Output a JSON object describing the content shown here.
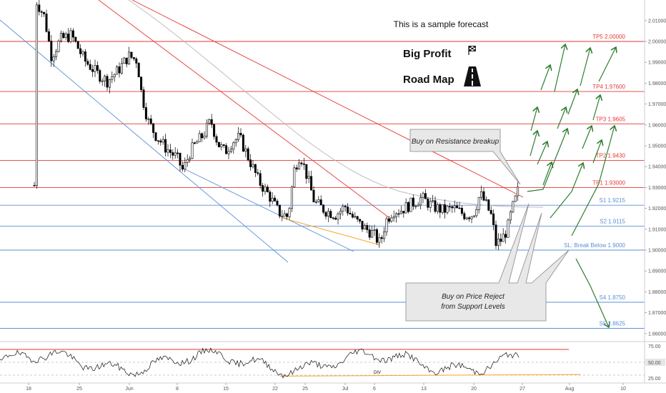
{
  "chart_data": {
    "type": "candlestick",
    "title": "This is a sample forecast",
    "heading_lines": [
      "Big Profit",
      "Road Map"
    ],
    "ylim": [
      1.855,
      2.02
    ],
    "y_ticks": [
      {
        "value": 2.01,
        "label": "2.01000"
      },
      {
        "value": 2.0,
        "label": "2.00000"
      },
      {
        "value": 1.99,
        "label": "1.99000"
      },
      {
        "value": 1.98,
        "label": "1.98000"
      },
      {
        "value": 1.97,
        "label": "1.97000"
      },
      {
        "value": 1.96,
        "label": "1.96000"
      },
      {
        "value": 1.95,
        "label": "1.95000"
      },
      {
        "value": 1.94,
        "label": "1.94000"
      },
      {
        "value": 1.93,
        "label": "1.93000"
      },
      {
        "value": 1.92,
        "label": "1.92000"
      },
      {
        "value": 1.91,
        "label": "1.91000"
      },
      {
        "value": 1.9,
        "label": "1.90000"
      },
      {
        "value": 1.89,
        "label": "1.89000"
      },
      {
        "value": 1.88,
        "label": "1.88000"
      },
      {
        "value": 1.87,
        "label": "1.87000"
      },
      {
        "value": 1.86,
        "label": "1.86000"
      }
    ],
    "x_ticks": [
      "18",
      "25",
      "Jun",
      "8",
      "15",
      "22",
      "25",
      "Jul",
      "6",
      "13",
      "20",
      "27",
      "Aug",
      "10"
    ],
    "levels": [
      {
        "label": "TP5 2.00000",
        "value": 2.0,
        "color": "#e53935"
      },
      {
        "label": "TP4 1.97600",
        "value": 1.976,
        "color": "#e53935"
      },
      {
        "label": "TP3 1.9605",
        "value": 1.9605,
        "color": "#e53935"
      },
      {
        "label": "TP2 1.9430",
        "value": 1.943,
        "color": "#e53935"
      },
      {
        "label": "TP1 1.93000",
        "value": 1.93,
        "color": "#e53935"
      },
      {
        "label": "S1 1.9215",
        "value": 1.9215,
        "color": "#5b8fd6"
      },
      {
        "label": "S2 1.9115",
        "value": 1.9115,
        "color": "#5b8fd6"
      },
      {
        "label": "SL: Break Below 1.9000",
        "value": 1.9,
        "color": "#5b8fd6"
      },
      {
        "label": "S4 1.8750",
        "value": 1.875,
        "color": "#5b8fd6"
      },
      {
        "label": "S5 1.8625",
        "value": 1.8625,
        "color": "#5b8fd6"
      }
    ],
    "callouts": {
      "resistance": "Buy on Resistance breakup",
      "support_line1": "Buy on Price Reject",
      "support_line2": "from Support Levels"
    },
    "rsi": {
      "ylim": [
        20,
        80
      ],
      "ticks": [
        {
          "value": 75,
          "label": "75.00"
        },
        {
          "value": 50,
          "label": "50.00"
        },
        {
          "value": 25,
          "label": "25.00"
        }
      ],
      "upper_band": 70,
      "lower_band": 30,
      "div_label": "DIV"
    },
    "colors": {
      "resistance": "#e53935",
      "support": "#5b8fd6",
      "bull_arrows": "#2e7d32",
      "bear_arrow": "#2e7d32",
      "trend_orange": "#f5a623",
      "moving_average": "#bdbdbd",
      "candles": "#000000"
    }
  }
}
